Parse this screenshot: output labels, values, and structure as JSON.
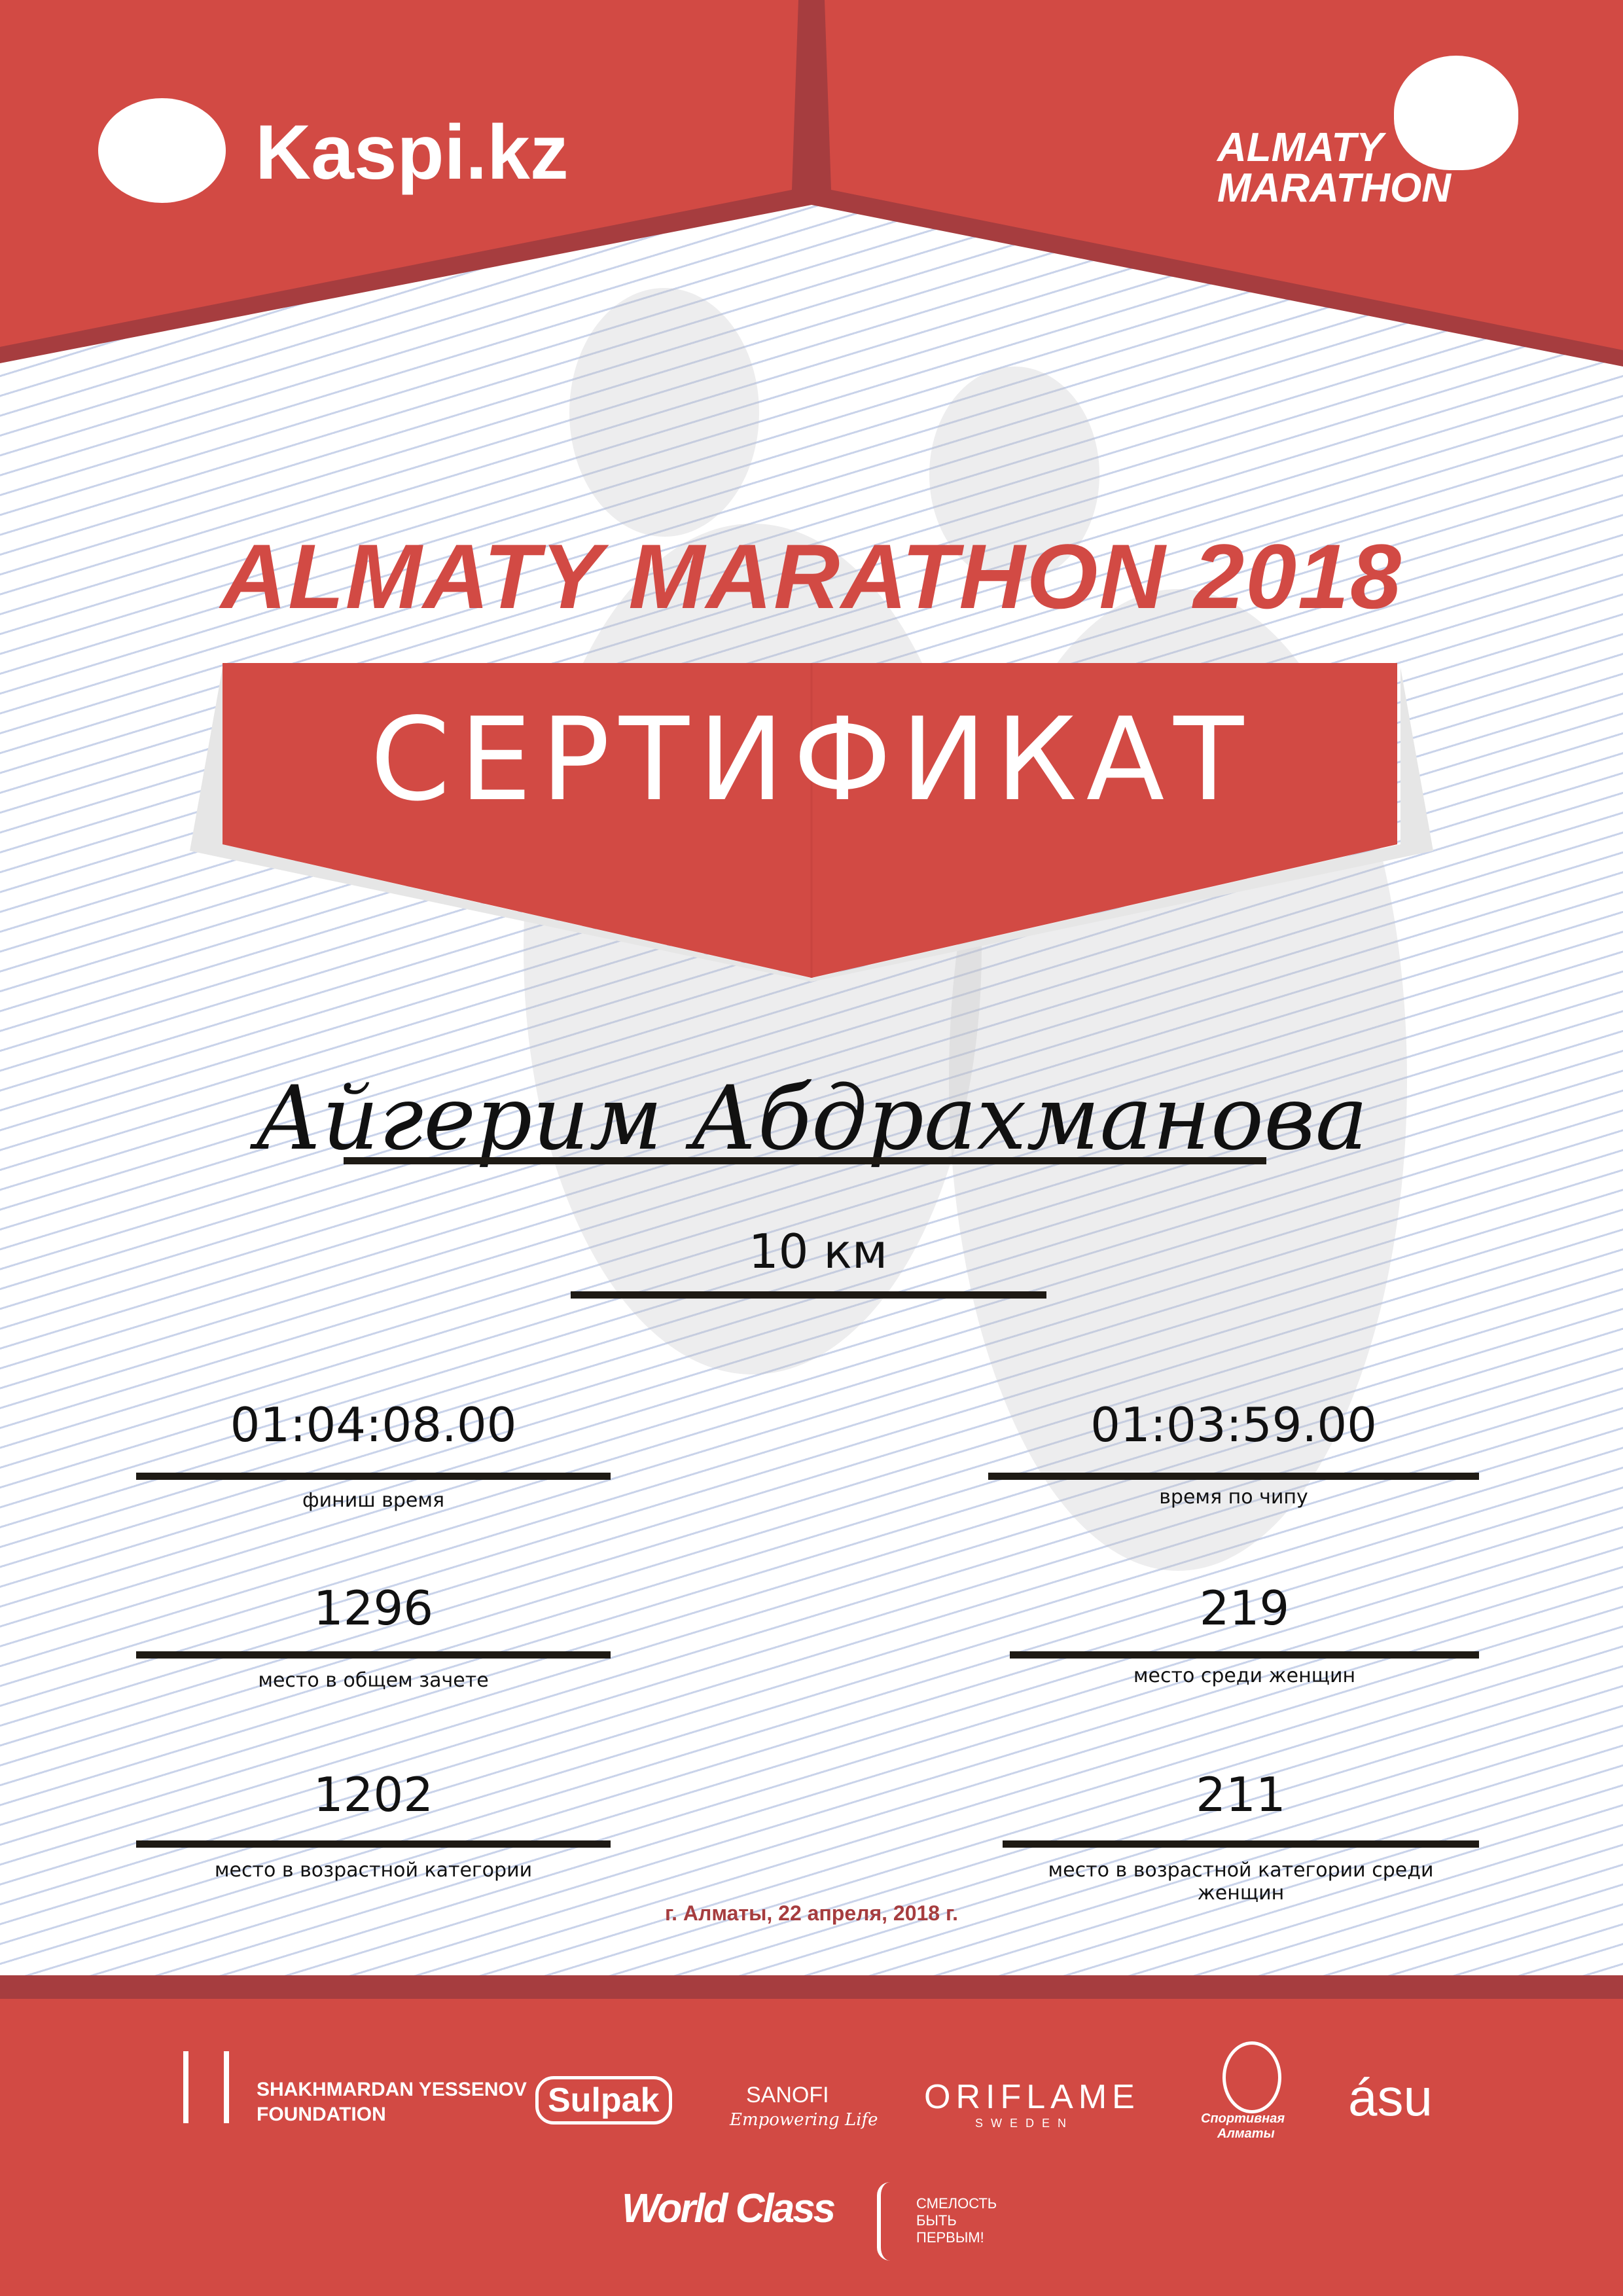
{
  "colors": {
    "brand_red": "#d24a44",
    "dark_red": "#a63d3f",
    "line": "#1e1a14"
  },
  "header": {
    "left_logo": "Kaspi.kz",
    "right_logo_line1": "ALMATY",
    "right_logo_line2": "MARATHON"
  },
  "event_title": "ALMATY MARATHON 2018",
  "certificate_label": "СЕРТИФИКАТ",
  "participant_name": "Айгерим Абдрахманова",
  "distance": "10 км",
  "results": [
    {
      "value": "01:04:08.00",
      "label": "финиш время"
    },
    {
      "value": "01:03:59.00",
      "label": "время по чипу"
    },
    {
      "value": "1296",
      "label": "место в общем зачете"
    },
    {
      "value": "219",
      "label": "место среди женщин"
    },
    {
      "value": "1202",
      "label": "место в возрастной категории"
    },
    {
      "value": "211",
      "label": "место в возрастной категории среди женщин"
    }
  ],
  "date_place": "г. Алматы, 22 апреля, 2018 г.",
  "sponsors": {
    "yessenov_1": "SHAKHMARDAN YESSENOV",
    "yessenov_2": "FOUNDATION",
    "sulpak": "Sulpak",
    "sanofi": "SANOFI",
    "sanofi_tag": "Empowering Life",
    "oriflame": "ORIFLAME",
    "oriflame_sub": "SWEDEN",
    "sport_almaty_1": "Спортивная",
    "sport_almaty_2": "Алматы",
    "asu": "ásu",
    "worldclass": "World Class",
    "fund_1": "СМЕЛОСТЬ",
    "fund_2": "БЫТЬ",
    "fund_3": "ПЕРВЫМ!"
  }
}
